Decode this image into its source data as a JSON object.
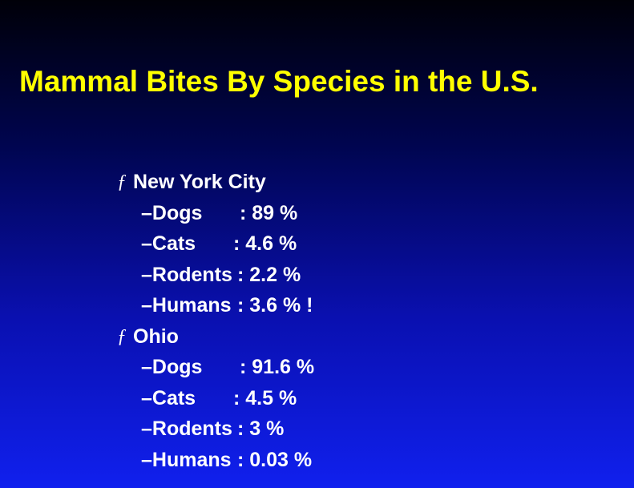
{
  "slide": {
    "title": "Mammal Bites By Species in the U.S.",
    "bullet_glyph": "ƒ",
    "groups": [
      {
        "heading": "New York City",
        "rows": [
          {
            "label": "–Dogs",
            "value": ": 89 %"
          },
          {
            "label": "–Cats",
            "value": ": 4.6 %"
          },
          {
            "label": "–Rodents",
            "value": ": 2.2 %"
          },
          {
            "label": "–Humans",
            "value": ": 3.6 % !"
          }
        ]
      },
      {
        "heading": "Ohio",
        "rows": [
          {
            "label": "–Dogs",
            "value": ": 91.6 %"
          },
          {
            "label": "–Cats",
            "value": ": 4.5 %"
          },
          {
            "label": "–Rodents",
            "value": ": 3 %"
          },
          {
            "label": "–Humans",
            "value": ": 0.03 %"
          }
        ]
      }
    ]
  },
  "colors": {
    "title": "#ffff00",
    "text": "#ffffff",
    "background_top": "#000008",
    "background_bottom": "#1020ee"
  }
}
